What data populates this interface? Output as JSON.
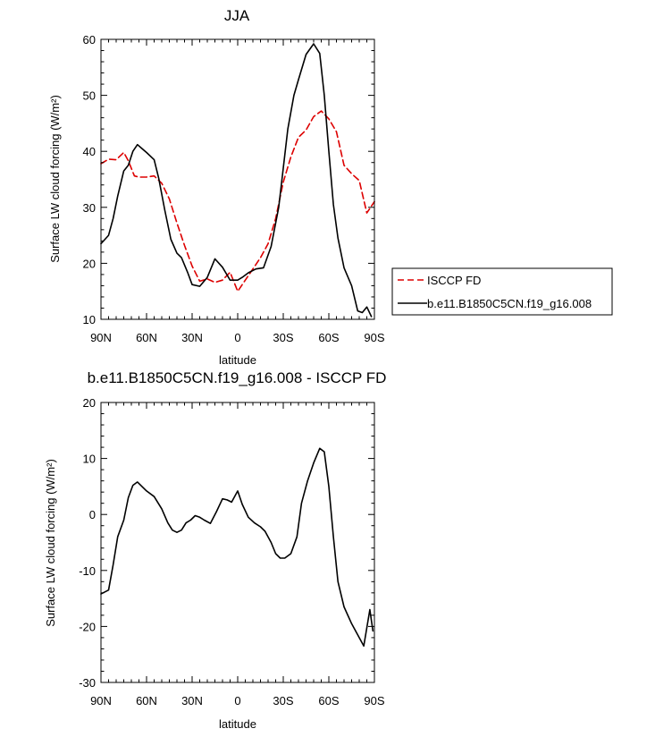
{
  "chart_data": [
    {
      "type": "line",
      "title": "JJA",
      "xlabel": "latitude",
      "ylabel": "Surface LW cloud forcing (W/m²)",
      "xlim": [
        90,
        -90
      ],
      "ylim": [
        10,
        60
      ],
      "x_tick_values": [
        90,
        60,
        30,
        0,
        -30,
        -60,
        -90
      ],
      "x_tick_labels": [
        "90N",
        "60N",
        "30N",
        "0",
        "30S",
        "60S",
        "90S"
      ],
      "y_tick_values": [
        10,
        20,
        30,
        40,
        50,
        60
      ],
      "y_tick_labels": [
        "10",
        "20",
        "30",
        "40",
        "50",
        "60"
      ],
      "legend": {
        "placement": "right",
        "frame": true
      },
      "series": [
        {
          "name": "ISCCP FD",
          "color": "#dd0000",
          "dash": "dashed",
          "x": [
            90,
            85,
            80,
            75,
            72,
            68,
            65,
            60,
            55,
            50,
            45,
            40,
            35,
            30,
            25,
            20,
            15,
            10,
            5,
            0,
            -5,
            -10,
            -15,
            -20,
            -25,
            -30,
            -35,
            -40,
            -45,
            -50,
            -55,
            -60,
            -65,
            -70,
            -75,
            -80,
            -85,
            -90
          ],
          "y": [
            37.8,
            38.6,
            38.5,
            39.8,
            38.3,
            35.6,
            35.4,
            35.4,
            35.6,
            34.3,
            31.5,
            27.2,
            23.2,
            19.5,
            16.8,
            17.2,
            16.6,
            17.0,
            18.4,
            15.0,
            17.0,
            19.0,
            21.0,
            23.5,
            28.0,
            34.5,
            39.0,
            42.5,
            43.8,
            46.2,
            47.2,
            45.8,
            43.5,
            37.5,
            36.0,
            34.8,
            29.0,
            31.0
          ]
        },
        {
          "name": "b.e11.B1850C5CN.f19_g16.008",
          "color": "#000000",
          "dash": "solid",
          "x": [
            90,
            85,
            82,
            79,
            75,
            72,
            69,
            66,
            63,
            60,
            55,
            52,
            48,
            44,
            40,
            37,
            33,
            30,
            25,
            20,
            15,
            10,
            5,
            0,
            -3,
            -7,
            -12,
            -17,
            -22,
            -27,
            -30,
            -33,
            -37,
            -40,
            -45,
            -50,
            -54,
            -57,
            -60,
            -63,
            -66,
            -70,
            -75,
            -79,
            -82,
            -85,
            -88
          ],
          "y": [
            23.5,
            25.0,
            28.0,
            32.0,
            36.5,
            37.5,
            40.0,
            41.2,
            40.5,
            39.8,
            38.5,
            35.2,
            29.5,
            24.3,
            21.8,
            21.0,
            18.4,
            16.2,
            15.9,
            17.5,
            20.8,
            19.3,
            17.0,
            17.0,
            17.5,
            18.3,
            19.0,
            19.2,
            23.0,
            30.0,
            37.0,
            44.0,
            50.0,
            52.8,
            57.3,
            59.2,
            57.5,
            50.0,
            40.0,
            30.5,
            24.5,
            19.2,
            16.0,
            11.5,
            11.2,
            12.2,
            10.5
          ]
        }
      ]
    },
    {
      "type": "line",
      "title": "b.e11.B1850C5CN.f19_g16.008 - ISCCP FD",
      "xlabel": "latitude",
      "ylabel": "Surface LW cloud forcing (W/m²)",
      "xlim": [
        90,
        -90
      ],
      "ylim": [
        -30,
        20
      ],
      "x_tick_values": [
        90,
        60,
        30,
        0,
        -30,
        -60,
        -90
      ],
      "x_tick_labels": [
        "90N",
        "60N",
        "30N",
        "0",
        "30S",
        "60S",
        "90S"
      ],
      "y_tick_values": [
        -30,
        -20,
        -10,
        0,
        10,
        20
      ],
      "y_tick_labels": [
        "-30",
        "-20",
        "-10",
        "0",
        "10",
        "20"
      ],
      "series": [
        {
          "color": "#000000",
          "dash": "solid",
          "x": [
            90,
            85,
            82,
            79,
            75,
            72,
            69,
            66,
            63,
            60,
            55,
            50,
            46,
            43,
            40,
            37,
            34,
            31,
            28,
            25,
            22,
            18,
            14,
            10,
            7,
            4,
            0,
            -3,
            -7,
            -11,
            -15,
            -18,
            -22,
            -25,
            -28,
            -31,
            -35,
            -39,
            -42,
            -46,
            -50,
            -54,
            -57,
            -60,
            -63,
            -66,
            -70,
            -75,
            -79,
            -83,
            -87,
            -89
          ],
          "y": [
            -14.2,
            -13.5,
            -9.0,
            -4.0,
            -1.0,
            3.0,
            5.2,
            5.8,
            5.0,
            4.2,
            3.2,
            1.0,
            -1.5,
            -2.8,
            -3.2,
            -2.8,
            -1.5,
            -1.0,
            -0.2,
            -0.5,
            -1.0,
            -1.6,
            0.5,
            2.8,
            2.6,
            2.2,
            4.2,
            1.8,
            -0.5,
            -1.5,
            -2.2,
            -3.0,
            -5.0,
            -7.0,
            -7.8,
            -7.8,
            -7.0,
            -4.0,
            2.0,
            6.0,
            9.2,
            11.8,
            11.2,
            5.0,
            -4.0,
            -12.0,
            -16.5,
            -19.5,
            -21.5,
            -23.5,
            -17.0,
            -20.8
          ]
        }
      ]
    }
  ]
}
